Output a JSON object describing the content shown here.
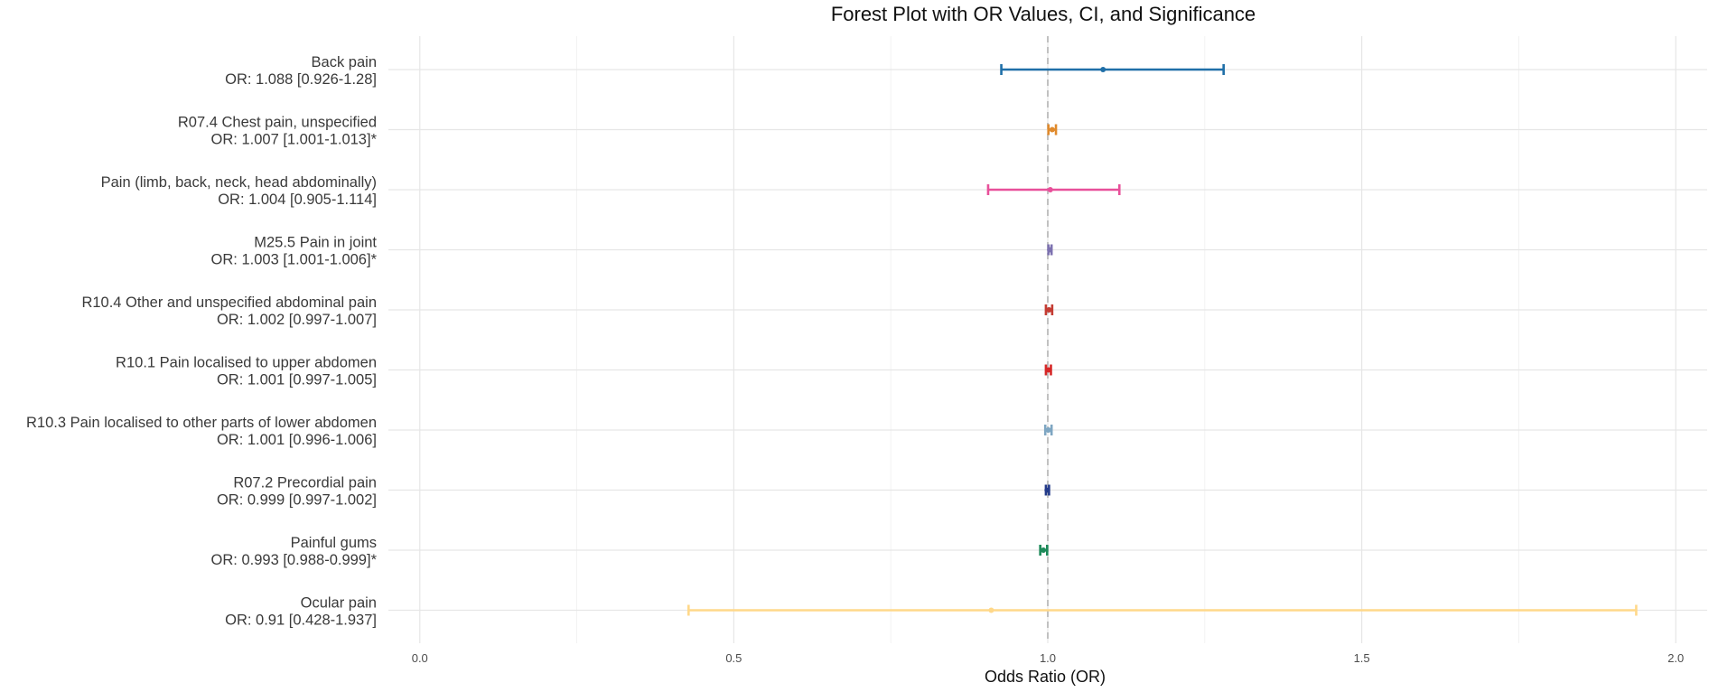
{
  "chart_data": {
    "type": "forest",
    "title": "Forest Plot with OR Values, CI, and Significance",
    "xlabel": "Odds Ratio (OR)",
    "xlim": [
      -0.05,
      2.05
    ],
    "x_ticks": [
      0.0,
      0.5,
      1.0,
      1.5,
      2.0
    ],
    "x_tick_labels": [
      "0.0",
      "0.5",
      "1.0",
      "1.5",
      "2.0"
    ],
    "reference_line": 1.0,
    "grid": true,
    "rows": [
      {
        "name": "Back pain",
        "or_text": "OR: 1.088 [0.926-1.28]",
        "or": 1.088,
        "lower": 0.926,
        "upper": 1.28,
        "color": "#1f6fa8"
      },
      {
        "name": "R07.4 Chest pain, unspecified",
        "or_text": "OR: 1.007 [1.001-1.013]*",
        "or": 1.007,
        "lower": 1.001,
        "upper": 1.013,
        "color": "#e08a2c"
      },
      {
        "name": "Pain (limb, back, neck, head abdominally)",
        "or_text": "OR: 1.004 [0.905-1.114]",
        "or": 1.004,
        "lower": 0.905,
        "upper": 1.114,
        "color": "#e8509a"
      },
      {
        "name": "M25.5 Pain in joint",
        "or_text": "OR: 1.003 [1.001-1.006]*",
        "or": 1.003,
        "lower": 1.001,
        "upper": 1.006,
        "color": "#7d72b0"
      },
      {
        "name": "R10.4 Other and unspecified abdominal pain",
        "or_text": "OR: 1.002 [0.997-1.007]",
        "or": 1.002,
        "lower": 0.997,
        "upper": 1.007,
        "color": "#c43c33"
      },
      {
        "name": "R10.1 Pain localised to upper abdomen",
        "or_text": "OR: 1.001 [0.997-1.005]",
        "or": 1.001,
        "lower": 0.997,
        "upper": 1.005,
        "color": "#d62828"
      },
      {
        "name": "R10.3 Pain localised to other parts of lower abdomen",
        "or_text": "OR: 1.001 [0.996-1.006]",
        "or": 1.001,
        "lower": 0.996,
        "upper": 1.006,
        "color": "#7ea6c2"
      },
      {
        "name": "R07.2 Precordial pain",
        "or_text": "OR: 0.999 [0.997-1.002]",
        "or": 0.999,
        "lower": 0.997,
        "upper": 1.002,
        "color": "#243b8a"
      },
      {
        "name": "Painful gums",
        "or_text": "OR: 0.993 [0.988-0.999]*",
        "or": 0.993,
        "lower": 0.988,
        "upper": 0.999,
        "color": "#1e8a5a"
      },
      {
        "name": "Ocular pain",
        "or_text": "OR: 0.91 [0.428-1.937]",
        "or": 0.91,
        "lower": 0.428,
        "upper": 1.937,
        "color": "#ffd88a"
      }
    ]
  }
}
